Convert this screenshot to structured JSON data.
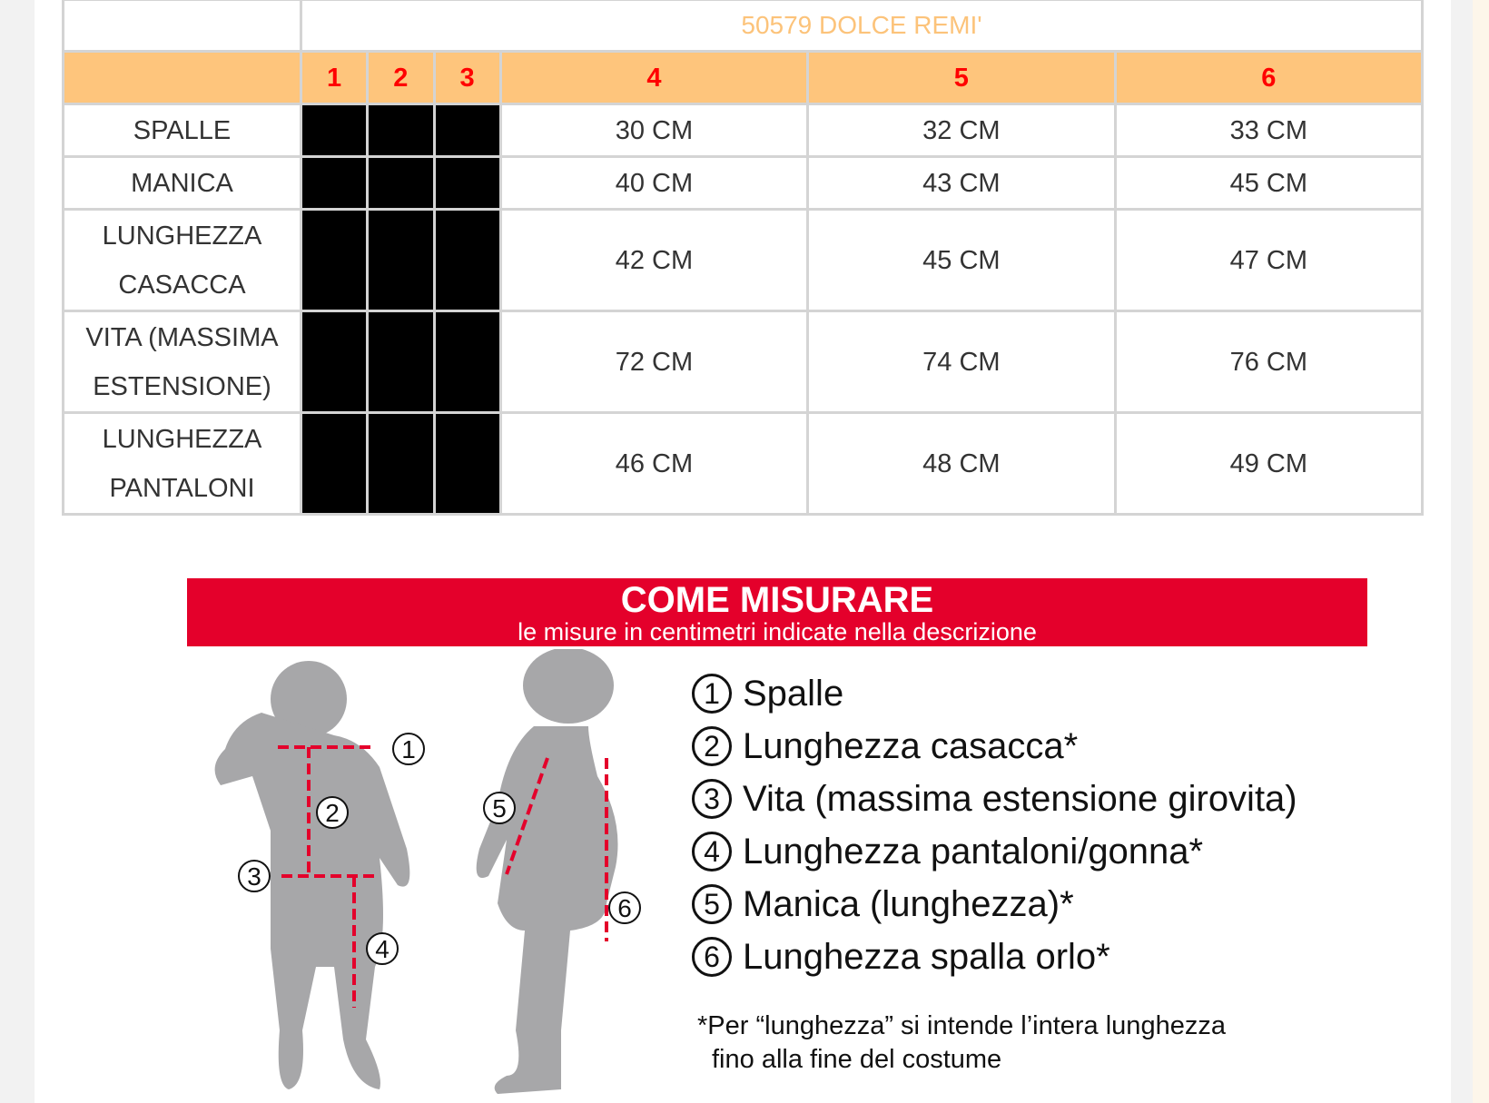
{
  "table": {
    "title": "50579 DOLCE REMI'",
    "sizes": [
      "1",
      "2",
      "3",
      "4",
      "5",
      "6"
    ],
    "rows": [
      {
        "label": "SPALLE",
        "values": [
          "30 CM",
          "32 CM",
          "33 CM"
        ]
      },
      {
        "label": "MANICA",
        "values": [
          "40 CM",
          "43 CM",
          "45 CM"
        ]
      },
      {
        "label": "LUNGHEZZA CASACCA",
        "values": [
          "42 CM",
          "45 CM",
          "47 CM"
        ]
      },
      {
        "label": "VITA (MASSIMA ESTENSIONE)",
        "values": [
          "72 CM",
          "74 CM",
          "76 CM"
        ]
      },
      {
        "label": "LUNGHEZZA PANTALONI",
        "values": [
          "46 CM",
          "48 CM",
          "49 CM"
        ]
      }
    ]
  },
  "guide": {
    "title": "COME MISURARE",
    "subtitle": "le misure in centimetri indicate nella descrizione",
    "items": [
      {
        "n": "1",
        "label": "Spalle"
      },
      {
        "n": "2",
        "label": "Lunghezza casacca*"
      },
      {
        "n": "3",
        "label": "Vita (massima estensione girovita)"
      },
      {
        "n": "4",
        "label": "Lunghezza pantaloni/gonna*"
      },
      {
        "n": "5",
        "label": "Manica (lunghezza)*"
      },
      {
        "n": "6",
        "label": "Lunghezza spalla orlo*"
      }
    ],
    "note_line1": "*Per “lunghezza” si intende l’intera lunghezza",
    "note_line2": "fino alla fine del costume"
  },
  "colors": {
    "header": "#fec57c",
    "size_text": "#ff0000",
    "title_text": "#fcc37a",
    "banner": "#e4002b"
  }
}
